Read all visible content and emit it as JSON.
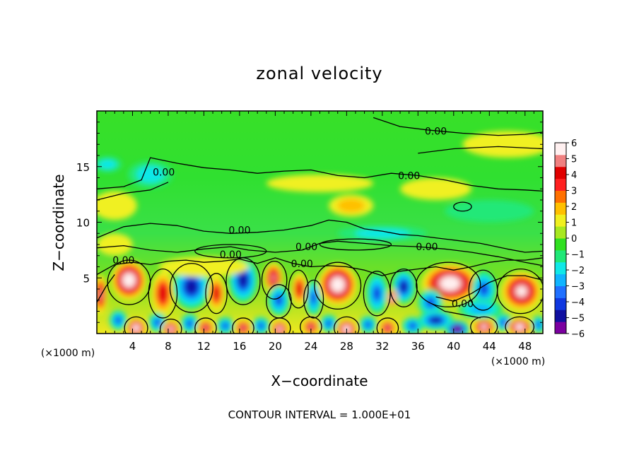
{
  "chart_data": {
    "type": "heatmap",
    "title": "zonal velocity",
    "xlabel": "X−coordinate",
    "ylabel": "Z−coordinate",
    "x_unit": "(×1000 m)",
    "y_unit": "(×1000 m)",
    "footer": "CONTOUR INTERVAL = 1.000E+01",
    "xlim": [
      0,
      50
    ],
    "ylim": [
      0,
      20
    ],
    "x_ticks": [
      4,
      8,
      12,
      16,
      20,
      24,
      28,
      32,
      36,
      40,
      44,
      48
    ],
    "y_ticks": [
      5,
      10,
      15
    ],
    "colorbar": {
      "min": -6,
      "max": 6,
      "ticks": [
        "6",
        "5",
        "4",
        "3",
        "2",
        "1",
        "0",
        "−1",
        "−2",
        "−3",
        "−4",
        "−5",
        "−6"
      ],
      "colors": [
        "#7b00a0",
        "#1010a0",
        "#1038e0",
        "#2070ff",
        "#10b4ff",
        "#10e8e8",
        "#20e878",
        "#30e020",
        "#a8e820",
        "#f0f020",
        "#ffc000",
        "#ff7000",
        "#ff2020",
        "#e00000",
        "#f08080",
        "#fff0f0"
      ]
    },
    "contour_labels": [
      {
        "text": "0.00",
        "x": 38.0,
        "y": 18.2
      },
      {
        "text": "0.00",
        "x": 7.5,
        "y": 14.5
      },
      {
        "text": "0.00",
        "x": 35.0,
        "y": 14.2
      },
      {
        "text": "0.00",
        "x": 16.0,
        "y": 9.3
      },
      {
        "text": "0.00",
        "x": 15.0,
        "y": 7.1
      },
      {
        "text": "0.00",
        "x": 23.5,
        "y": 7.8
      },
      {
        "text": "0.00",
        "x": 3.0,
        "y": 6.6
      },
      {
        "text": "0.00",
        "x": 23.0,
        "y": 6.3
      },
      {
        "text": "0.00",
        "x": 37.0,
        "y": 7.8
      },
      {
        "text": "0.00",
        "x": 41.0,
        "y": 2.7
      }
    ],
    "blobs": [
      {
        "x": 3.6,
        "y": 4.8,
        "rx": 2.0,
        "ry": 1.8,
        "v": 6.5
      },
      {
        "x": 0.4,
        "y": 3.5,
        "rx": 0.8,
        "ry": 1.8,
        "v": 4.5
      },
      {
        "x": 7.4,
        "y": 3.6,
        "rx": 1.3,
        "ry": 2.0,
        "v": 4.0
      },
      {
        "x": 10.6,
        "y": 4.2,
        "rx": 2.1,
        "ry": 2.0,
        "v": -4.5
      },
      {
        "x": 13.4,
        "y": 3.6,
        "rx": 1.0,
        "ry": 1.6,
        "v": 3.5
      },
      {
        "x": 16.4,
        "y": 4.8,
        "rx": 1.6,
        "ry": 2.0,
        "v": -4.8
      },
      {
        "x": 19.8,
        "y": 5.0,
        "rx": 1.1,
        "ry": 1.4,
        "v": 5.0
      },
      {
        "x": 20.4,
        "y": 3.0,
        "rx": 1.2,
        "ry": 1.4,
        "v": -4.0
      },
      {
        "x": 22.7,
        "y": 4.0,
        "rx": 0.9,
        "ry": 1.5,
        "v": 3.5
      },
      {
        "x": 24.3,
        "y": 3.2,
        "rx": 0.9,
        "ry": 1.6,
        "v": -4.0
      },
      {
        "x": 27.0,
        "y": 4.4,
        "rx": 2.2,
        "ry": 1.9,
        "v": 6.5
      },
      {
        "x": 31.4,
        "y": 3.6,
        "rx": 1.2,
        "ry": 1.8,
        "v": -3.5
      },
      {
        "x": 34.4,
        "y": 4.2,
        "rx": 1.3,
        "ry": 1.5,
        "v": -4.5
      },
      {
        "x": 33.1,
        "y": 3.2,
        "rx": 0.6,
        "ry": 0.8,
        "v": 6.5
      },
      {
        "x": 39.6,
        "y": 4.5,
        "rx": 3.2,
        "ry": 1.8,
        "v": 6.5
      },
      {
        "x": 37.4,
        "y": 2.8,
        "rx": 1.4,
        "ry": 1.2,
        "v": -4.0
      },
      {
        "x": 43.4,
        "y": 4.0,
        "rx": 1.4,
        "ry": 1.6,
        "v": -4.2
      },
      {
        "x": 47.6,
        "y": 3.8,
        "rx": 2.3,
        "ry": 1.8,
        "v": 6.0
      },
      {
        "x": 2.4,
        "y": 1.2,
        "rx": 1.0,
        "ry": 0.9,
        "v": -3.8
      },
      {
        "x": 4.4,
        "y": 0.5,
        "rx": 1.1,
        "ry": 0.9,
        "v": 6.5
      },
      {
        "x": 6.8,
        "y": 1.0,
        "rx": 1.0,
        "ry": 0.9,
        "v": -3.8
      },
      {
        "x": 8.3,
        "y": 0.4,
        "rx": 1.0,
        "ry": 0.8,
        "v": 6.0
      },
      {
        "x": 10.4,
        "y": 0.9,
        "rx": 1.0,
        "ry": 0.9,
        "v": -3.5
      },
      {
        "x": 12.2,
        "y": 0.5,
        "rx": 1.0,
        "ry": 0.8,
        "v": 5.0
      },
      {
        "x": 14.4,
        "y": 0.7,
        "rx": 1.0,
        "ry": 0.8,
        "v": -3.8
      },
      {
        "x": 16.4,
        "y": 0.5,
        "rx": 1.0,
        "ry": 0.8,
        "v": 5.0
      },
      {
        "x": 18.4,
        "y": 0.7,
        "rx": 1.0,
        "ry": 0.8,
        "v": -3.6
      },
      {
        "x": 20.5,
        "y": 0.4,
        "rx": 1.0,
        "ry": 0.8,
        "v": 5.5
      },
      {
        "x": 24.0,
        "y": 0.6,
        "rx": 1.0,
        "ry": 0.8,
        "v": 4.5
      },
      {
        "x": 26.0,
        "y": 0.9,
        "rx": 1.0,
        "ry": 0.8,
        "v": -3.8
      },
      {
        "x": 28.0,
        "y": 0.4,
        "rx": 1.2,
        "ry": 0.9,
        "v": 6.5
      },
      {
        "x": 30.4,
        "y": 0.8,
        "rx": 1.0,
        "ry": 0.8,
        "v": -3.6
      },
      {
        "x": 32.6,
        "y": 0.5,
        "rx": 1.0,
        "ry": 0.8,
        "v": 4.8
      },
      {
        "x": 35.4,
        "y": 0.7,
        "rx": 1.2,
        "ry": 0.8,
        "v": -3.5
      },
      {
        "x": 38.0,
        "y": 1.2,
        "rx": 2.0,
        "ry": 0.9,
        "v": -4.5
      },
      {
        "x": 40.4,
        "y": 0.4,
        "rx": 1.4,
        "ry": 0.8,
        "v": -6.5
      },
      {
        "x": 43.4,
        "y": 0.6,
        "rx": 1.3,
        "ry": 0.8,
        "v": 5.5
      },
      {
        "x": 45.6,
        "y": 1.0,
        "rx": 1.0,
        "ry": 0.8,
        "v": -3.8
      },
      {
        "x": 47.4,
        "y": 0.6,
        "rx": 1.4,
        "ry": 0.8,
        "v": 6.5
      },
      {
        "x": 49.5,
        "y": 0.8,
        "rx": 0.8,
        "ry": 0.8,
        "v": -3.6
      },
      {
        "x": 43.0,
        "y": 2.2,
        "rx": 2.5,
        "ry": 0.9,
        "v": -3.2
      },
      {
        "x": 6.0,
        "y": 14.3,
        "rx": 2.5,
        "ry": 1.2,
        "v": -2.0
      },
      {
        "x": 1.2,
        "y": 15.2,
        "rx": 1.6,
        "ry": 0.7,
        "v": -1.5
      },
      {
        "x": 28.5,
        "y": 11.5,
        "rx": 2.5,
        "ry": 1.0,
        "v": 1.6
      },
      {
        "x": 25.0,
        "y": 13.5,
        "rx": 6.0,
        "ry": 0.8,
        "v": 0.8
      },
      {
        "x": 32.0,
        "y": 9.0,
        "rx": 5.0,
        "ry": 0.7,
        "v": -1.8
      },
      {
        "x": 46.0,
        "y": 17.0,
        "rx": 5.0,
        "ry": 1.2,
        "v": 0.9
      },
      {
        "x": 2.0,
        "y": 11.5,
        "rx": 2.5,
        "ry": 1.3,
        "v": 0.8
      },
      {
        "x": 44.0,
        "y": 11.0,
        "rx": 5.0,
        "ry": 1.0,
        "v": -0.7
      },
      {
        "x": 38.0,
        "y": 13.0,
        "rx": 4.0,
        "ry": 1.0,
        "v": 0.6
      },
      {
        "x": 2.0,
        "y": 8.0,
        "rx": 2.0,
        "ry": 1.0,
        "v": 0.7
      },
      {
        "x": 12.0,
        "y": 6.0,
        "rx": 5.0,
        "ry": 0.9,
        "v": 0.9
      }
    ],
    "contour_lines": [
      [
        [
          0,
          8.6
        ],
        [
          3,
          9.6
        ],
        [
          6,
          9.9
        ],
        [
          9,
          9.7
        ],
        [
          12,
          9.2
        ],
        [
          15,
          9.0
        ],
        [
          18,
          9.1
        ],
        [
          21,
          9.3
        ],
        [
          24,
          9.7
        ],
        [
          26,
          10.2
        ],
        [
          28,
          10.0
        ],
        [
          30,
          9.4
        ],
        [
          32,
          9.2
        ],
        [
          34,
          8.9
        ],
        [
          36,
          8.8
        ],
        [
          38,
          8.6
        ],
        [
          40,
          8.4
        ],
        [
          43,
          8.1
        ],
        [
          46,
          7.6
        ],
        [
          48,
          7.3
        ],
        [
          50,
          7.4
        ]
      ],
      [
        [
          0,
          7.7
        ],
        [
          3,
          7.9
        ],
        [
          6,
          7.5
        ],
        [
          9,
          7.3
        ],
        [
          12,
          7.6
        ],
        [
          15,
          7.8
        ],
        [
          17,
          7.5
        ],
        [
          20,
          7.3
        ],
        [
          23,
          7.5
        ],
        [
          25,
          8.1
        ],
        [
          27,
          8.3
        ],
        [
          30,
          8.1
        ],
        [
          33,
          7.9
        ],
        [
          36,
          7.8
        ],
        [
          39,
          7.6
        ],
        [
          42,
          7.3
        ],
        [
          45,
          6.9
        ],
        [
          48,
          6.4
        ],
        [
          50,
          6.1
        ]
      ],
      [
        [
          0,
          13.0
        ],
        [
          3,
          13.2
        ],
        [
          5,
          13.8
        ],
        [
          6,
          15.8
        ],
        [
          9,
          15.3
        ],
        [
          12,
          14.9
        ],
        [
          15,
          14.7
        ],
        [
          18,
          14.4
        ],
        [
          21,
          14.6
        ],
        [
          24,
          14.7
        ],
        [
          27,
          14.2
        ],
        [
          30,
          14.0
        ],
        [
          33,
          14.4
        ],
        [
          36,
          14.2
        ],
        [
          39,
          13.8
        ],
        [
          42,
          13.3
        ],
        [
          45,
          13.0
        ],
        [
          48,
          12.9
        ],
        [
          50,
          12.8
        ]
      ],
      [
        [
          0,
          12.0
        ],
        [
          3,
          12.6
        ],
        [
          6,
          12.9
        ],
        [
          8,
          13.6
        ]
      ],
      [
        [
          31,
          19.4
        ],
        [
          34,
          18.6
        ],
        [
          37,
          18.3
        ],
        [
          41,
          18.0
        ],
        [
          45,
          17.8
        ],
        [
          48,
          17.9
        ],
        [
          50,
          18.1
        ]
      ],
      [
        [
          36,
          16.2
        ],
        [
          40,
          16.6
        ],
        [
          45,
          16.8
        ],
        [
          50,
          16.6
        ]
      ],
      [
        [
          0,
          5.3
        ],
        [
          2,
          6.2
        ],
        [
          4,
          6.4
        ],
        [
          6,
          6.2
        ],
        [
          8,
          6.5
        ],
        [
          10,
          6.6
        ],
        [
          12,
          6.4
        ],
        [
          14,
          6.5
        ],
        [
          16,
          6.7
        ],
        [
          18,
          6.3
        ],
        [
          20,
          6.8
        ],
        [
          22,
          6.3
        ],
        [
          24,
          6.0
        ],
        [
          26,
          6.1
        ],
        [
          28,
          6.0
        ],
        [
          30,
          5.7
        ],
        [
          32,
          5.2
        ],
        [
          34,
          5.6
        ],
        [
          36,
          5.8
        ],
        [
          38,
          6.0
        ],
        [
          40,
          5.7
        ],
        [
          42,
          6.0
        ],
        [
          44,
          6.4
        ],
        [
          46,
          6.6
        ],
        [
          48,
          6.6
        ],
        [
          50,
          6.8
        ]
      ],
      [
        [
          0,
          2.8
        ],
        [
          1,
          4.2
        ],
        [
          2,
          5.3
        ]
      ],
      [
        [
          38,
          3.3
        ],
        [
          40,
          2.9
        ],
        [
          42,
          3.6
        ],
        [
          44,
          4.6
        ],
        [
          46,
          5.2
        ],
        [
          48,
          5.2
        ],
        [
          50,
          4.8
        ]
      ],
      [
        [
          37.5,
          2.7
        ],
        [
          39,
          2.0
        ],
        [
          41,
          1.7
        ],
        [
          43,
          1.4
        ]
      ]
    ],
    "closed_contours": [
      {
        "x": 3.6,
        "y": 4.6,
        "rx": 2.4,
        "ry": 2.0
      },
      {
        "x": 7.4,
        "y": 3.6,
        "rx": 1.6,
        "ry": 2.2
      },
      {
        "x": 10.6,
        "y": 4.1,
        "rx": 2.4,
        "ry": 2.2
      },
      {
        "x": 16.4,
        "y": 4.7,
        "rx": 1.9,
        "ry": 2.1
      },
      {
        "x": 19.9,
        "y": 4.8,
        "rx": 1.4,
        "ry": 1.7
      },
      {
        "x": 27.0,
        "y": 4.3,
        "rx": 2.6,
        "ry": 2.1
      },
      {
        "x": 34.4,
        "y": 4.1,
        "rx": 1.5,
        "ry": 1.7
      },
      {
        "x": 39.4,
        "y": 4.4,
        "rx": 3.6,
        "ry": 2.0
      },
      {
        "x": 47.5,
        "y": 3.8,
        "rx": 2.6,
        "ry": 2.0
      },
      {
        "x": 43.3,
        "y": 3.9,
        "rx": 1.6,
        "ry": 1.8
      },
      {
        "x": 31.4,
        "y": 3.6,
        "rx": 1.5,
        "ry": 2.0
      },
      {
        "x": 22.6,
        "y": 4.0,
        "rx": 1.1,
        "ry": 1.7
      },
      {
        "x": 13.4,
        "y": 3.6,
        "rx": 1.2,
        "ry": 1.8
      },
      {
        "x": 20.4,
        "y": 2.9,
        "rx": 1.4,
        "ry": 1.5
      },
      {
        "x": 24.3,
        "y": 3.1,
        "rx": 1.1,
        "ry": 1.7
      },
      {
        "x": 15.0,
        "y": 7.4,
        "rx": 4.0,
        "ry": 0.6
      },
      {
        "x": 29.0,
        "y": 8.0,
        "rx": 4.0,
        "ry": 0.5
      },
      {
        "x": 41.0,
        "y": 11.4,
        "rx": 1.0,
        "ry": 0.4
      },
      {
        "x": 4.4,
        "y": 0.5,
        "rx": 1.3,
        "ry": 1.0
      },
      {
        "x": 8.3,
        "y": 0.4,
        "rx": 1.2,
        "ry": 0.9
      },
      {
        "x": 12.2,
        "y": 0.5,
        "rx": 1.2,
        "ry": 0.9
      },
      {
        "x": 16.4,
        "y": 0.5,
        "rx": 1.2,
        "ry": 0.9
      },
      {
        "x": 20.5,
        "y": 0.5,
        "rx": 1.2,
        "ry": 0.9
      },
      {
        "x": 24.0,
        "y": 0.6,
        "rx": 1.2,
        "ry": 0.9
      },
      {
        "x": 28.0,
        "y": 0.5,
        "rx": 1.4,
        "ry": 1.0
      },
      {
        "x": 32.6,
        "y": 0.5,
        "rx": 1.2,
        "ry": 0.9
      },
      {
        "x": 43.4,
        "y": 0.6,
        "rx": 1.5,
        "ry": 0.9
      },
      {
        "x": 47.4,
        "y": 0.6,
        "rx": 1.6,
        "ry": 0.9
      }
    ]
  }
}
